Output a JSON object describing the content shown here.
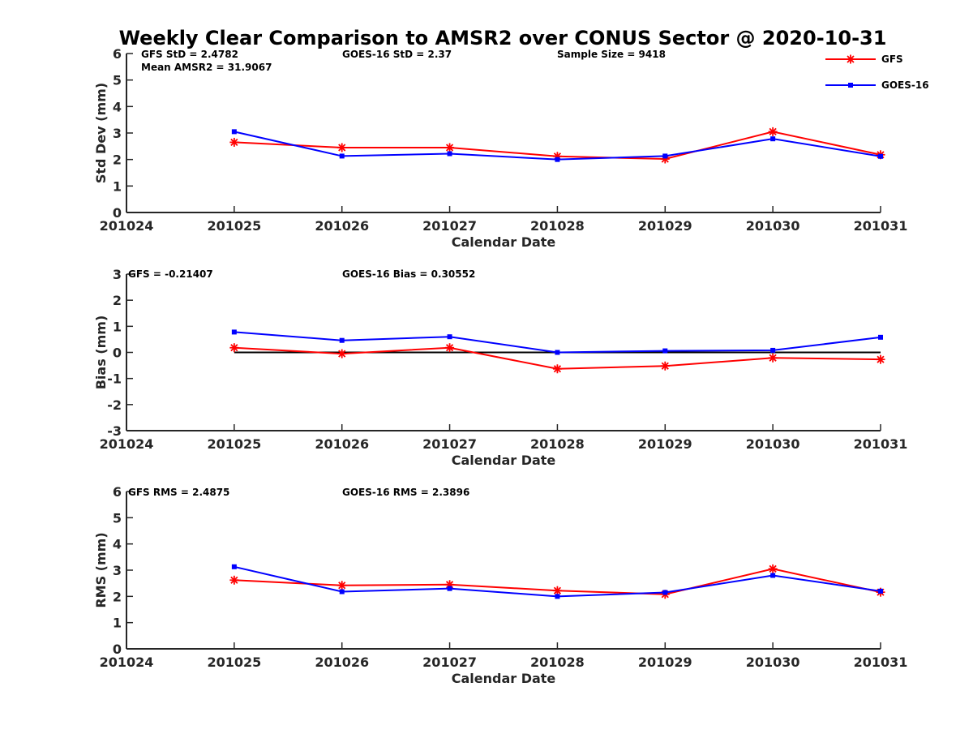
{
  "title": "Weekly Clear Comparison to AMSR2 over CONUS Sector @ 2020-10-31",
  "colors": {
    "gfs": "#ff0000",
    "goes": "#0000ff",
    "axis": "#262626",
    "zero_line": "#000000"
  },
  "chart_data": [
    {
      "type": "line",
      "xlabel": "Calendar Date",
      "ylabel": "Std Dev (mm)",
      "x_ticks": [
        "201024",
        "201025",
        "201026",
        "201027",
        "201028",
        "201029",
        "201030",
        "201031"
      ],
      "ylim": [
        0,
        6
      ],
      "y_ticks": [
        "0",
        "1",
        "2",
        "3",
        "4",
        "5",
        "6"
      ],
      "grid": false,
      "legend": "top-right",
      "series": [
        {
          "name": "GFS",
          "marker": "asterisk",
          "x": [
            201025,
            201026,
            201027,
            201028,
            201029,
            201030,
            201031
          ],
          "values": [
            2.65,
            2.45,
            2.45,
            2.12,
            2.02,
            3.05,
            2.18
          ]
        },
        {
          "name": "GOES-16",
          "marker": "square",
          "x": [
            201025,
            201026,
            201027,
            201028,
            201029,
            201030,
            201031
          ],
          "values": [
            3.05,
            2.13,
            2.22,
            2.0,
            2.13,
            2.78,
            2.12
          ]
        }
      ],
      "annotations": [
        "GFS StD = 2.4782",
        "GOES-16 StD = 2.37",
        "Sample Size = 9418",
        "Mean AMSR2 = 31.9067"
      ]
    },
    {
      "type": "line",
      "xlabel": "Calendar Date",
      "ylabel": "Bias (mm)",
      "x_ticks": [
        "201024",
        "201025",
        "201026",
        "201027",
        "201028",
        "201029",
        "201030",
        "201031"
      ],
      "ylim": [
        -3,
        3
      ],
      "y_ticks": [
        "-3",
        "-2",
        "-1",
        "0",
        "1",
        "2",
        "3"
      ],
      "grid": false,
      "reference_line": 0,
      "series": [
        {
          "name": "GFS",
          "marker": "asterisk",
          "x": [
            201025,
            201026,
            201027,
            201028,
            201029,
            201030,
            201031
          ],
          "values": [
            0.18,
            -0.05,
            0.18,
            -0.63,
            -0.52,
            -0.21,
            -0.27
          ]
        },
        {
          "name": "GOES-16",
          "marker": "square",
          "x": [
            201025,
            201026,
            201027,
            201028,
            201029,
            201030,
            201031
          ],
          "values": [
            0.78,
            0.46,
            0.6,
            0.0,
            0.06,
            0.08,
            0.58
          ]
        }
      ],
      "annotations": [
        "GFS = -0.21407",
        "GOES-16 Bias  = 0.30552"
      ]
    },
    {
      "type": "line",
      "xlabel": "Calendar Date",
      "ylabel": "RMS (mm)",
      "x_ticks": [
        "201024",
        "201025",
        "201026",
        "201027",
        "201028",
        "201029",
        "201030",
        "201031"
      ],
      "ylim": [
        0,
        6
      ],
      "y_ticks": [
        "0",
        "1",
        "2",
        "3",
        "4",
        "5",
        "6"
      ],
      "grid": false,
      "series": [
        {
          "name": "GFS",
          "marker": "asterisk",
          "x": [
            201025,
            201026,
            201027,
            201028,
            201029,
            201030,
            201031
          ],
          "values": [
            2.62,
            2.42,
            2.45,
            2.22,
            2.08,
            3.05,
            2.16
          ]
        },
        {
          "name": "GOES-16",
          "marker": "square",
          "x": [
            201025,
            201026,
            201027,
            201028,
            201029,
            201030,
            201031
          ],
          "values": [
            3.13,
            2.18,
            2.3,
            2.0,
            2.15,
            2.8,
            2.2
          ]
        }
      ],
      "annotations": [
        "GFS RMS = 2.4875",
        "GOES-16 RMS = 2.3896"
      ]
    }
  ]
}
